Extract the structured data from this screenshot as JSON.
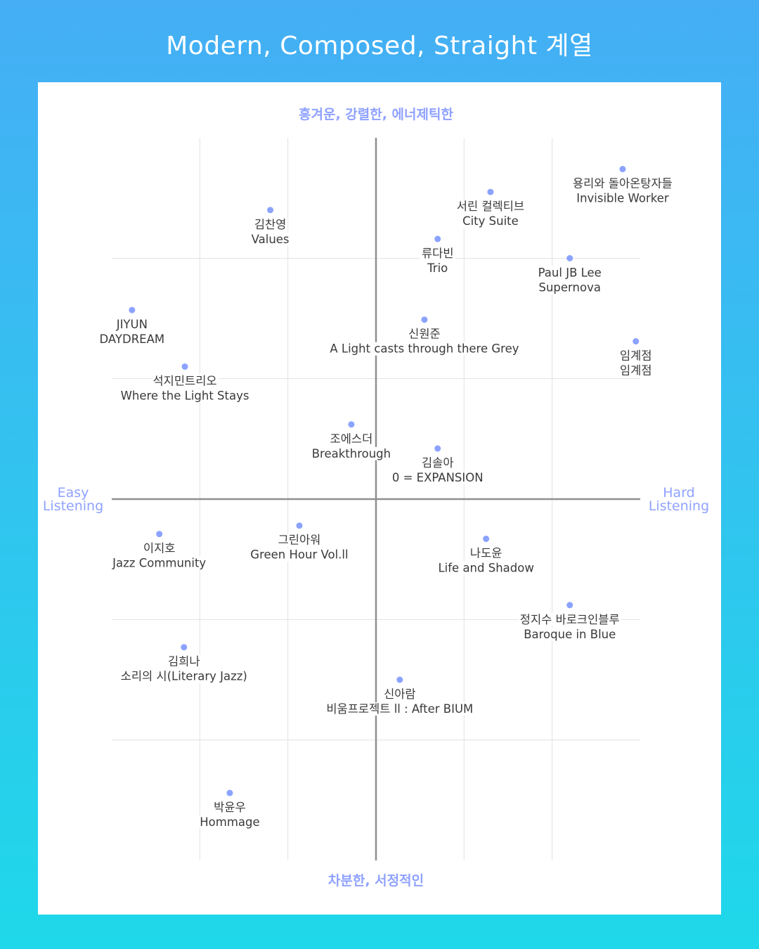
{
  "header": {
    "title": "Modern, Composed, Straight 계열"
  },
  "chart_data": {
    "type": "scatter",
    "title": "Modern, Composed, Straight 계열",
    "axis_labels": {
      "top": "흥겨운, 강렬한, 에너제틱한",
      "bottom": "차분한, 서정적인",
      "left": [
        "Easy",
        "Listening"
      ],
      "right": [
        "Hard",
        "Listening"
      ]
    },
    "xlim": [
      -3,
      3
    ],
    "ylim": [
      -3,
      3
    ],
    "grid": true,
    "colors": {
      "point": "#8ba3ff",
      "axis_label": "#8fa2ff",
      "text": "#3a3a3a"
    },
    "points": [
      {
        "artist": "용리와 돌아온탕자들",
        "album": "Invisible Worker",
        "x": 2.8,
        "y": 2.74
      },
      {
        "artist": "서린 컬렉티브",
        "album": "City Suite",
        "x": 1.3,
        "y": 2.55
      },
      {
        "artist": "김찬영",
        "album": "Values",
        "x": -1.2,
        "y": 2.4
      },
      {
        "artist": "류다빈",
        "album": "Trio",
        "x": 0.7,
        "y": 2.16
      },
      {
        "artist": "Paul JB Lee",
        "album": "Supernova",
        "x": 2.2,
        "y": 2.0
      },
      {
        "artist": "JIYUN",
        "album": "DAYDREAM",
        "x": -2.77,
        "y": 1.57
      },
      {
        "artist": "신원준",
        "album": "A Light casts through there Grey",
        "x": 0.55,
        "y": 1.49
      },
      {
        "artist": "임계점",
        "album": "임계점",
        "x": 2.95,
        "y": 1.31
      },
      {
        "artist": "석지민트리오",
        "album": "Where the Light Stays",
        "x": -2.17,
        "y": 1.1
      },
      {
        "artist": "조에스더",
        "album": "Breakthrough",
        "x": -0.28,
        "y": 0.62
      },
      {
        "artist": "김솔아",
        "album": "0 = EXPANSION",
        "x": 0.7,
        "y": 0.42
      },
      {
        "artist": "이지호",
        "album": "Jazz Community",
        "x": -2.46,
        "y": -0.29
      },
      {
        "artist": "그린아워",
        "album": "Green Hour Vol.ll",
        "x": -0.87,
        "y": -0.22
      },
      {
        "artist": "나도윤",
        "album": "Life and Shadow",
        "x": 1.25,
        "y": -0.33
      },
      {
        "artist": "정지수 바로크인블루",
        "album": "Baroque in Blue",
        "x": 2.2,
        "y": -0.88
      },
      {
        "artist": "김희나",
        "album": "소리의 시(Literary Jazz)",
        "x": -2.18,
        "y": -1.23
      },
      {
        "artist": "신아람",
        "album": "비움프로젝트 ll : After BIUM",
        "x": 0.27,
        "y": -1.5
      },
      {
        "artist": "박윤우",
        "album": "Hommage",
        "x": -1.66,
        "y": -2.44
      }
    ]
  }
}
